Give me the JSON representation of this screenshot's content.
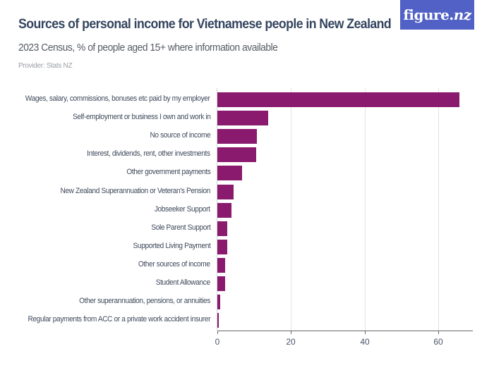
{
  "header": {
    "title": "Sources of personal income for Vietnamese people in New Zealand",
    "subtitle": "2023 Census, % of people aged 15+ where information available",
    "provider": "Provider: Stats NZ",
    "logo_text_main": "figure.",
    "logo_text_accent": "nz"
  },
  "colors": {
    "bar": "#8a1a6e",
    "title": "#34455f",
    "logo_bg": "#5161c6"
  },
  "chart_data": {
    "type": "bar",
    "orientation": "horizontal",
    "title": "Sources of personal income for Vietnamese people in New Zealand",
    "subtitle": "2023 Census, % of people aged 15+ where information available",
    "xlabel": "",
    "ylabel": "",
    "xlim": [
      0,
      70
    ],
    "xticks": [
      0,
      20,
      40,
      60
    ],
    "grid": true,
    "legend": null,
    "categories": [
      "Wages, salary, commissions, bonuses etc paid by my employer",
      "Self-employment or business I own and work in",
      "No source of income",
      "Interest, dividends, rent, other investments",
      "Other government payments",
      "New Zealand Superannuation or Veteran's Pension",
      "Jobseeker Support",
      "Sole Parent Support",
      "Supported Living Payment",
      "Other sources of income",
      "Student Allowance",
      "Other superannuation, pensions, or annuities",
      "Regular payments from ACC or a private work accident insurer"
    ],
    "values": [
      65.7,
      13.8,
      10.7,
      10.5,
      6.8,
      4.5,
      3.8,
      2.6,
      2.6,
      2.2,
      2.1,
      0.8,
      0.4
    ]
  }
}
